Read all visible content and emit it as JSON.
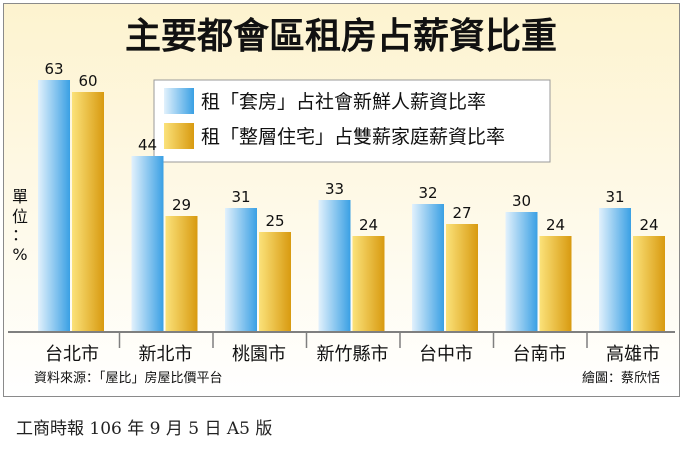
{
  "chart_data": {
    "type": "bar",
    "title": "主要都會區租房占薪資比重",
    "categories": [
      "台北市",
      "新北市",
      "桃園市",
      "新竹縣市",
      "台中市",
      "台南市",
      "高雄市"
    ],
    "series": [
      {
        "name": "租「套房」占社會新鮮人薪資比率",
        "values": [
          63,
          44,
          31,
          33,
          32,
          30,
          31
        ]
      },
      {
        "name": "租「整層住宅」占雙薪家庭薪資比率",
        "values": [
          60,
          29,
          25,
          24,
          27,
          24,
          24
        ]
      }
    ],
    "unit_label": [
      "單",
      "位",
      "：",
      "%"
    ],
    "ylim": [
      0,
      70
    ],
    "grid": false,
    "legend_position": "top-right",
    "source": "資料來源：「屋比」房屋比價平台",
    "credit": "繪圖：蔡欣恬",
    "colors": {
      "series1_light": "#e2f1fc",
      "series1_dark": "#3aa0e4",
      "series2_light": "#fbe27a",
      "series2_dark": "#d89a10",
      "background_top": "#fdf3cf",
      "background_bottom": "#ffffff",
      "baseline": "#7f7f7f"
    }
  },
  "caption": "工商時報  106 年 9 月 5 日  A5 版"
}
